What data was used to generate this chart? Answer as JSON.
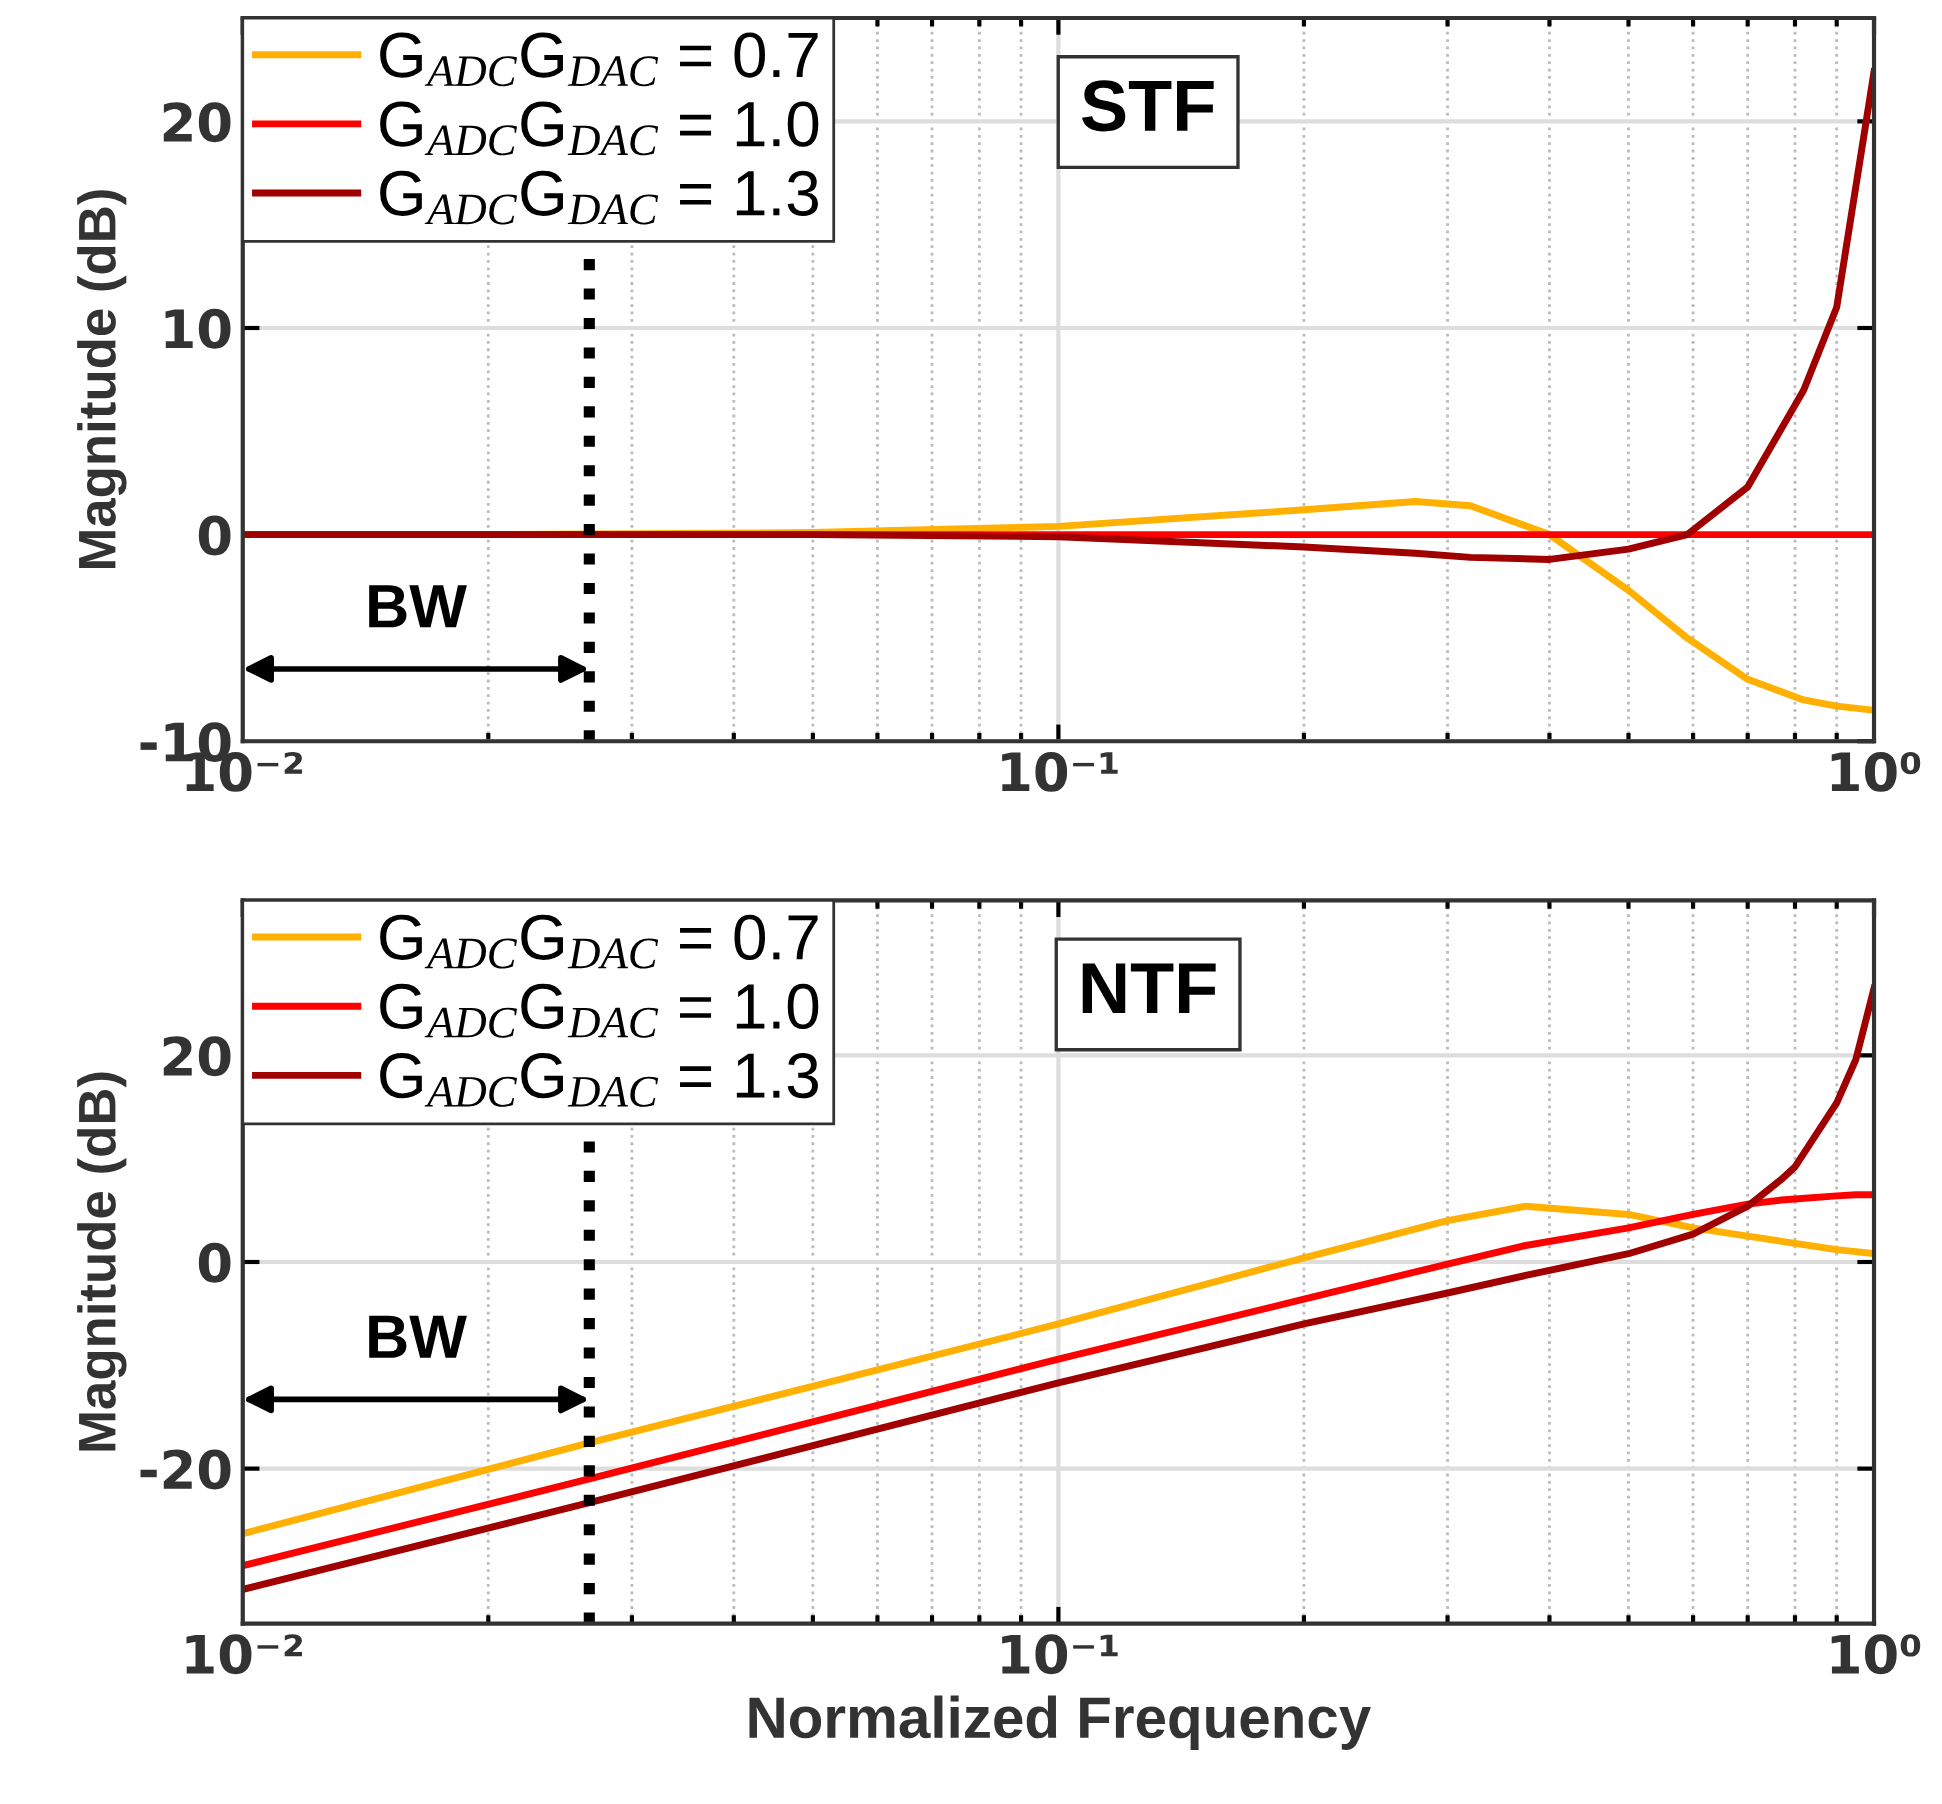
{
  "chart_data": [
    {
      "type": "line",
      "title": "STF",
      "ylabel": "Magnitude (dB)",
      "log": "x",
      "xlim": [
        0.01,
        1
      ],
      "ylim": [
        -10,
        25
      ],
      "xticks": [
        {
          "value": 0.01,
          "label": "10⁻²"
        },
        {
          "value": 0.1,
          "label": "10⁻¹"
        },
        {
          "value": 1,
          "label": "10⁰"
        }
      ],
      "yticks": [
        -10,
        0,
        10,
        20
      ],
      "grid": true,
      "legend": "top left",
      "marker": "none",
      "line_style": "solid",
      "ref_lines": [
        {
          "axis": "x",
          "value": 0.0266,
          "label": null,
          "color": "#000000",
          "line_style": "dotted"
        }
      ],
      "annotations": [
        "BW"
      ],
      "x": [
        0.01,
        0.02,
        0.05,
        0.1,
        0.2,
        0.274,
        0.32,
        0.4,
        0.5,
        0.59,
        0.7,
        0.82,
        0.9,
        1.0
      ],
      "series": [
        {
          "name": "G$_{ADC}$G$_{DAC}$ = 0.7",
          "color": "#ffb000",
          "values": [
            0,
            0,
            0.1,
            0.4,
            1.2,
            1.6,
            1.4,
            0,
            -2.7,
            -5,
            -7,
            -8,
            -8.3,
            -8.5
          ]
        },
        {
          "name": "G$_{ADC}$G$_{DAC}$ = 1.0",
          "color": "#ff0000",
          "values": [
            0,
            0,
            0,
            0,
            0,
            0,
            0,
            0,
            0,
            0,
            0,
            0,
            0,
            0
          ]
        },
        {
          "name": "G$_{ADC}$G$_{DAC}$ = 1.3",
          "color": "#a00000",
          "values": [
            0,
            0,
            0,
            -0.1,
            -0.6,
            -0.9,
            -1.1,
            -1.2,
            -0.7,
            0,
            2.3,
            7,
            11,
            22.4
          ]
        }
      ]
    },
    {
      "type": "line",
      "title": "NTF",
      "xlabel": "Normalized Frequency",
      "ylabel": "Magnitude (dB)",
      "log": "x",
      "xlim": [
        0.01,
        1
      ],
      "ylim": [
        -35,
        35
      ],
      "xticks": [
        {
          "value": 0.01,
          "label": "10⁻²"
        },
        {
          "value": 0.1,
          "label": "10⁻¹"
        },
        {
          "value": 1,
          "label": "10⁰"
        }
      ],
      "yticks": [
        -20,
        0,
        20
      ],
      "grid": true,
      "legend": "top left",
      "marker": "none",
      "line_style": "solid",
      "ref_lines": [
        {
          "axis": "x",
          "value": 0.0266,
          "label": null,
          "color": "#000000",
          "line_style": "dotted"
        }
      ],
      "annotations": [
        "BW"
      ],
      "x": [
        0.01,
        0.0266,
        0.1,
        0.2,
        0.3,
        0.374,
        0.5,
        0.6,
        0.7,
        0.77,
        0.8,
        0.9,
        0.95,
        1.0
      ],
      "series": [
        {
          "name": "G$_{ADC}$G$_{DAC}$ = 0.7",
          "color": "#ffb000",
          "values": [
            -26.3,
            -17.5,
            -6,
            0.4,
            4,
            5.4,
            4.6,
            3.3,
            2.5,
            2,
            1.8,
            1.2,
            1,
            0.8
          ]
        },
        {
          "name": "G$_{ADC}$G$_{DAC}$ = 1.0",
          "color": "#ff0000",
          "values": [
            -29.4,
            -21,
            -9.4,
            -3.6,
            -0.2,
            1.6,
            3.3,
            4.6,
            5.6,
            6,
            6.1,
            6.4,
            6.5,
            6.5
          ]
        },
        {
          "name": "G$_{ADC}$G$_{DAC}$ = 1.3",
          "color": "#a00000",
          "values": [
            -31.7,
            -23.3,
            -11.7,
            -6,
            -3,
            -1.3,
            0.8,
            2.7,
            5.4,
            8,
            9.2,
            15.4,
            19.6,
            26.5
          ]
        }
      ]
    }
  ]
}
